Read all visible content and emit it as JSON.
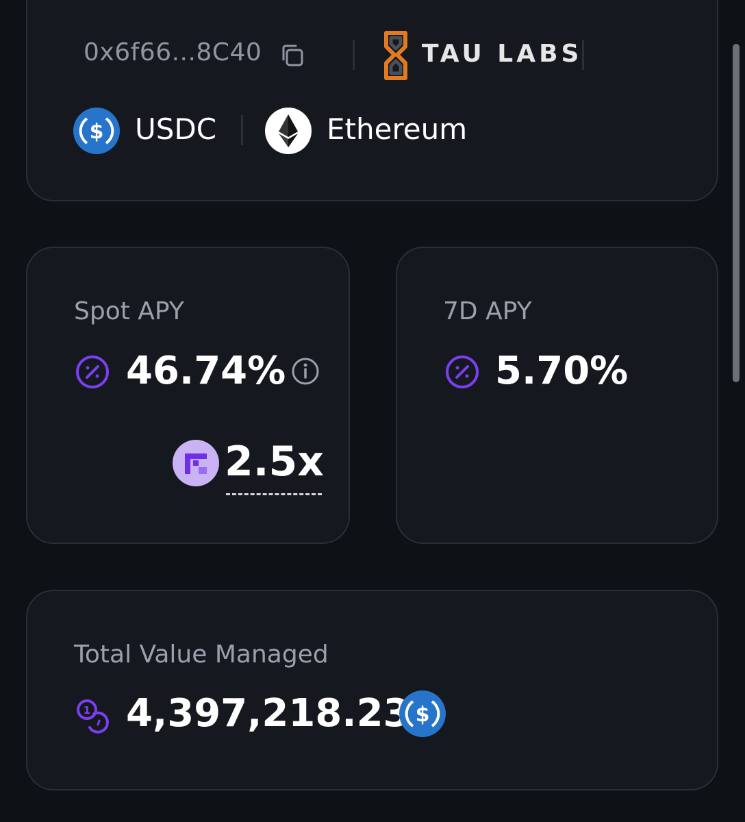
{
  "vault": {
    "address": "0x6f66...8C40",
    "curator": "TAU LABS",
    "asset": "USDC",
    "network": "Ethereum"
  },
  "spot_apy": {
    "label": "Spot APY",
    "value": "46.74%",
    "boost": "2.5x"
  },
  "apy_7d": {
    "label": "7D APY",
    "value": "5.70%"
  },
  "tvm": {
    "label": "Total Value Managed",
    "value": "4,397,218.23"
  },
  "icons": {
    "copy": "copy-icon",
    "curator_logo": "tau-labs-logo",
    "asset": "usdc-icon",
    "network": "ethereum-icon",
    "percent": "percent-icon",
    "info": "info-icon",
    "boost": "boost-points-icon",
    "coins": "coins-icon"
  },
  "colors": {
    "background": "#0e1116",
    "card": "#15181e",
    "accent_purple": "#7b3ff2",
    "usdc_blue": "#2775ca",
    "tau_orange": "#e07b24",
    "muted_text": "#9aa1ad"
  }
}
